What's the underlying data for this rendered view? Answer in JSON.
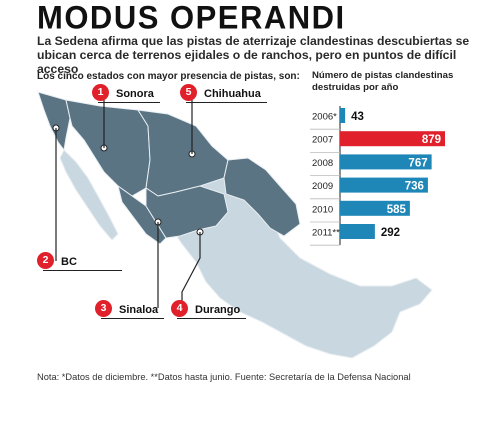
{
  "header": {
    "title": "MODUS OPERANDI",
    "subtitle": "La Sedena afirma que las pistas de aterrizaje clandestinas descubiertas se ubican cerca de terrenos ejidales o de ranchos, pero en puntos de difícil acceso"
  },
  "map": {
    "label": "Los cinco estados con mayor presencia de pistas, son:",
    "states": [
      {
        "number": "1",
        "name": "Sonora"
      },
      {
        "number": "2",
        "name": "BC"
      },
      {
        "number": "3",
        "name": "Sinaloa"
      },
      {
        "number": "4",
        "name": "Durango"
      },
      {
        "number": "5",
        "name": "Chihuahua"
      }
    ],
    "colors": {
      "highlighted": "#5a7484",
      "other": "#c9d7e0",
      "border": "#e8eef2"
    }
  },
  "chart_data": {
    "type": "bar",
    "title": "Número de pistas clandestinas destruidas por año",
    "categories": [
      "2006*",
      "2007",
      "2008",
      "2009",
      "2010",
      "2011**"
    ],
    "values": [
      43,
      879,
      767,
      736,
      585,
      292
    ],
    "value_labels": [
      "43",
      "879",
      "767",
      "736",
      "585",
      "292"
    ],
    "orientation": "horizontal",
    "bar_colors": [
      "#1f86b8",
      "#e0202a",
      "#1f86b8",
      "#1f86b8",
      "#1f86b8",
      "#1f86b8"
    ],
    "highlight_category": "2007"
  },
  "footer": {
    "note": "Nota: *Datos de diciembre. **Datos hasta junio. Fuente: Secretaría de la Defensa Nacional"
  }
}
